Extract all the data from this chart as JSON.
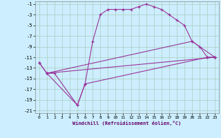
{
  "xlabel": "Windchill (Refroidissement éolien,°C)",
  "bg_color": "#cceeff",
  "grid_color": "#aaccbb",
  "line_color": "#993399",
  "xlim": [
    -0.5,
    23.5
  ],
  "ylim": [
    -21.5,
    -0.5
  ],
  "xticks": [
    0,
    1,
    2,
    3,
    4,
    5,
    6,
    7,
    8,
    9,
    10,
    11,
    12,
    13,
    14,
    15,
    16,
    17,
    18,
    19,
    20,
    21,
    22,
    23
  ],
  "yticks": [
    -21,
    -19,
    -17,
    -15,
    -13,
    -11,
    -9,
    -7,
    -5,
    -3,
    -1
  ],
  "series0_x": [
    0,
    1,
    2,
    5,
    6,
    7,
    8,
    9,
    10,
    11,
    12,
    13,
    14,
    15,
    16,
    17,
    18,
    19,
    20,
    21,
    22,
    23
  ],
  "series0_y": [
    -12,
    -14,
    -14,
    -20,
    -16,
    -8,
    -3,
    -2,
    -2,
    -2,
    -2,
    -1.5,
    -1,
    -1.5,
    -2,
    -3,
    -4,
    -5,
    -8,
    -9,
    -11,
    -11
  ],
  "series1_x": [
    0,
    1,
    5,
    6,
    22,
    23
  ],
  "series1_y": [
    -12,
    -14,
    -20,
    -16,
    -11,
    -11
  ],
  "series2_x": [
    1,
    23
  ],
  "series2_y": [
    -14,
    -11
  ],
  "series3_x": [
    1,
    20,
    23
  ],
  "series3_y": [
    -14,
    -8,
    -11
  ]
}
